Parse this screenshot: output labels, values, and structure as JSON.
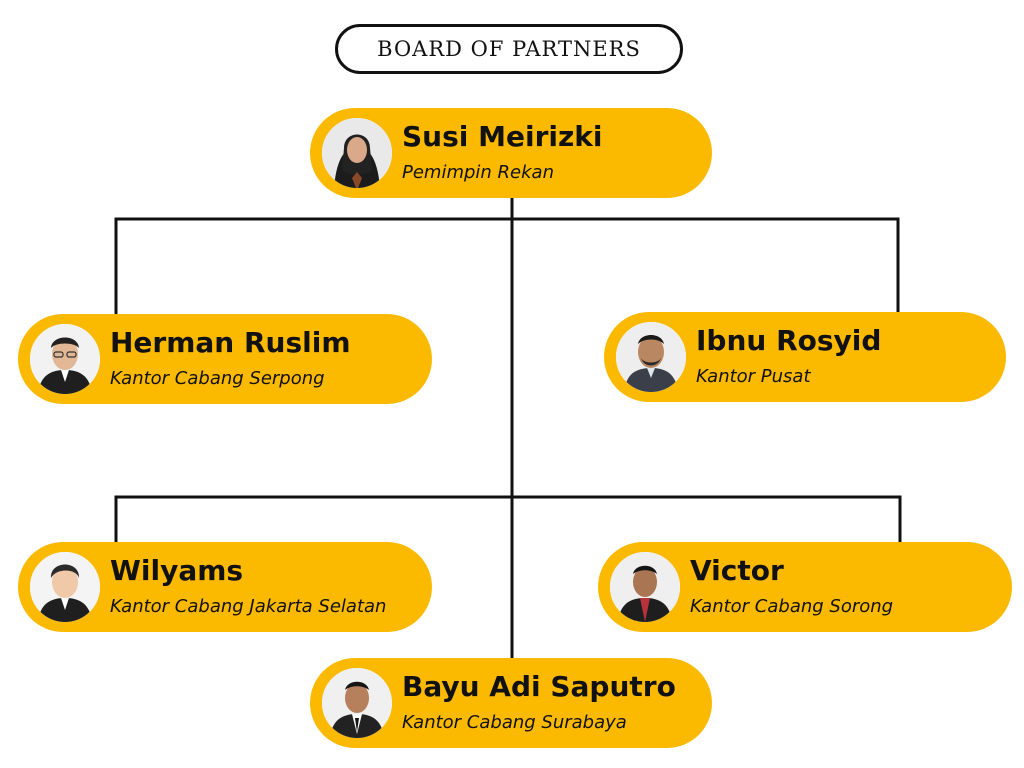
{
  "title": "BOARD OF PARTNERS",
  "colors": {
    "card": "#fbb900",
    "line": "#111111"
  },
  "root": {
    "name": "Susi Meirizki",
    "role": "Pemimpin Rekan",
    "avatar": "person-hijab-icon"
  },
  "partners": [
    {
      "name": "Herman Ruslim",
      "role": "Kantor Cabang Serpong",
      "avatar": "person-glasses-icon"
    },
    {
      "name": "Ibnu Rosyid",
      "role": "Kantor Pusat",
      "avatar": "person-beard-icon"
    },
    {
      "name": "Wilyams",
      "role": "Kantor Cabang Jakarta Selatan",
      "avatar": "person-icon"
    },
    {
      "name": "Victor",
      "role": "Kantor Cabang Sorong",
      "avatar": "person-batik-icon"
    },
    {
      "name": "Bayu Adi Saputro",
      "role": "Kantor Cabang Surabaya",
      "avatar": "person-suit-icon"
    }
  ]
}
